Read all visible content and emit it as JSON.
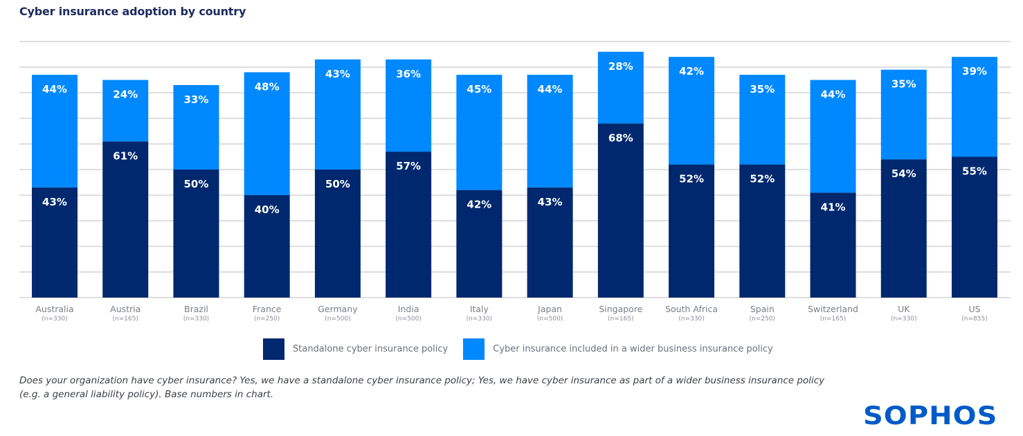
{
  "title": "Cyber insurance adoption by country",
  "chart_data": {
    "type": "bar",
    "stacked": true,
    "title": "Cyber insurance adoption by country",
    "xlabel": "",
    "ylabel": "",
    "ylim": [
      0,
      100
    ],
    "grid": true,
    "legend_position": "bottom-center",
    "categories": [
      "Australia",
      "Austria",
      "Brazil",
      "France",
      "Germany",
      "India",
      "Italy",
      "Japan",
      "Singapore",
      "South Africa",
      "Spain",
      "Switzerland",
      "UK",
      "US"
    ],
    "base_labels": [
      "(n=330)",
      "(n=165)",
      "(n=330)",
      "(n=250)",
      "(n=500)",
      "(n=500)",
      "(n=330)",
      "(n=500)",
      "(n=165)",
      "(n=330)",
      "(n=250)",
      "(n=165)",
      "(n=330)",
      "(n=855)"
    ],
    "series": [
      {
        "name": "Standalone cyber insurance policy",
        "color": "#00286e",
        "values": [
          43,
          61,
          50,
          40,
          50,
          57,
          42,
          43,
          68,
          52,
          52,
          41,
          54,
          55
        ]
      },
      {
        "name": "Cyber insurance included in a wider business insurance policy",
        "color": "#0088ff",
        "values": [
          44,
          24,
          33,
          48,
          43,
          36,
          45,
          44,
          28,
          42,
          35,
          44,
          35,
          39
        ]
      }
    ]
  },
  "legend": {
    "items": [
      {
        "label": "Standalone cyber insurance policy",
        "color": "#00286e"
      },
      {
        "label": "Cyber insurance included in a wider business insurance policy",
        "color": "#0088ff"
      }
    ]
  },
  "footnote": {
    "line1": "Does your organization have cyber insurance? Yes, we have a standalone cyber insurance policy; Yes, we have cyber insurance as part of a wider business insurance policy",
    "line2": "(e.g. a general liability policy). Base numbers in chart."
  },
  "logo": {
    "text": "SOPHOS",
    "color": "#005bc8"
  }
}
